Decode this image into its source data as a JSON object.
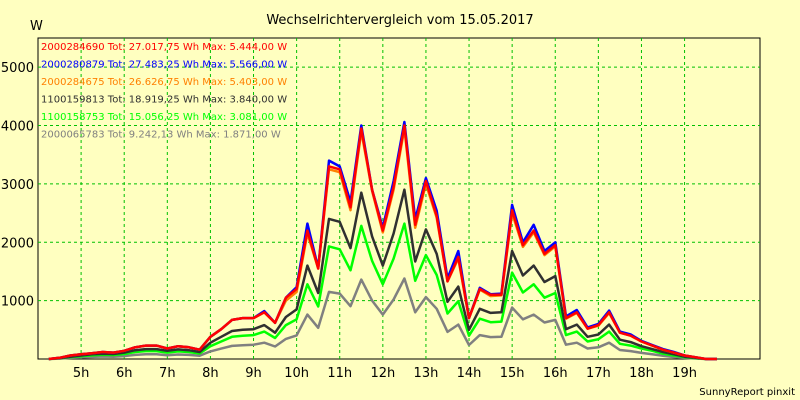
{
  "chart_data": {
    "type": "line",
    "title": "Wechselrichtervergleich vom 15.05.2017",
    "ylabel": "W",
    "xlabel": "",
    "footer": "SunnyReport pinxit",
    "grid": true,
    "legend_position": "top-left",
    "xlim": [
      4.0,
      20.75
    ],
    "ylim": [
      0,
      5500
    ],
    "x_ticks": [
      {
        "value": 5,
        "label": "5h"
      },
      {
        "value": 6,
        "label": "6h"
      },
      {
        "value": 7,
        "label": "7h"
      },
      {
        "value": 8,
        "label": "8h"
      },
      {
        "value": 9,
        "label": "9h"
      },
      {
        "value": 10,
        "label": "10h"
      },
      {
        "value": 11,
        "label": "11h"
      },
      {
        "value": 12,
        "label": "12h"
      },
      {
        "value": 13,
        "label": "13h"
      },
      {
        "value": 14,
        "label": "14h"
      },
      {
        "value": 15,
        "label": "15h"
      },
      {
        "value": 16,
        "label": "16h"
      },
      {
        "value": 17,
        "label": "17h"
      },
      {
        "value": 18,
        "label": "18h"
      },
      {
        "value": 19,
        "label": "19h"
      }
    ],
    "y_ticks": [
      {
        "value": 1000,
        "label": "1000"
      },
      {
        "value": 2000,
        "label": "2000"
      },
      {
        "value": 3000,
        "label": "3000"
      },
      {
        "value": 4000,
        "label": "4000"
      },
      {
        "value": 5000,
        "label": "5000"
      }
    ],
    "x": [
      4.25,
      4.5,
      4.75,
      5.0,
      5.25,
      5.5,
      5.75,
      6.0,
      6.25,
      6.5,
      6.75,
      7.0,
      7.25,
      7.5,
      7.75,
      8.0,
      8.25,
      8.5,
      8.75,
      9.0,
      9.25,
      9.5,
      9.75,
      10.0,
      10.25,
      10.5,
      10.75,
      11.0,
      11.25,
      11.5,
      11.75,
      12.0,
      12.25,
      12.5,
      12.75,
      13.0,
      13.25,
      13.5,
      13.75,
      14.0,
      14.25,
      14.5,
      14.75,
      15.0,
      15.25,
      15.5,
      15.75,
      16.0,
      16.25,
      16.5,
      16.75,
      17.0,
      17.25,
      17.5,
      17.75,
      18.0,
      18.25,
      18.5,
      18.75,
      19.0,
      19.25,
      19.5,
      19.75
    ],
    "series": [
      {
        "name": "2000284690",
        "legend": "2000284690 Tot: 27.017,75 Wh Max: 5.444,00 W",
        "color": "#ff0000",
        "values": [
          0,
          20,
          60,
          80,
          100,
          120,
          110,
          140,
          200,
          230,
          230,
          180,
          220,
          200,
          160,
          380,
          510,
          670,
          700,
          700,
          800,
          620,
          1050,
          1200,
          2200,
          1550,
          3300,
          3250,
          2600,
          3950,
          2900,
          2200,
          2950,
          4000,
          2300,
          3050,
          2450,
          1330,
          1750,
          700,
          1200,
          1100,
          1100,
          2550,
          1950,
          2200,
          1800,
          1950,
          700,
          800,
          520,
          580,
          800,
          450,
          400,
          300,
          230,
          160,
          110,
          60,
          30,
          0,
          0
        ]
      },
      {
        "name": "2000280879",
        "legend": "2000280879 Tot: 27.483,25 Wh Max: 5.566,00 W",
        "color": "#0000ff",
        "values": [
          0,
          20,
          60,
          80,
          100,
          120,
          110,
          140,
          200,
          230,
          230,
          180,
          220,
          200,
          160,
          380,
          510,
          670,
          700,
          700,
          820,
          620,
          1050,
          1230,
          2320,
          1560,
          3400,
          3300,
          2690,
          4000,
          2900,
          2250,
          3050,
          4060,
          2390,
          3100,
          2540,
          1380,
          1850,
          700,
          1220,
          1110,
          1120,
          2640,
          2000,
          2300,
          1850,
          2000,
          730,
          840,
          540,
          600,
          830,
          470,
          420,
          310,
          240,
          170,
          120,
          60,
          30,
          0,
          0
        ]
      },
      {
        "name": "2000284675",
        "legend": "2000284675 Tot: 26.626,75 Wh Max: 5.403,00 W",
        "color": "#ff8000",
        "values": [
          0,
          20,
          60,
          80,
          100,
          120,
          110,
          140,
          200,
          230,
          230,
          180,
          220,
          200,
          160,
          380,
          510,
          670,
          700,
          700,
          800,
          620,
          1000,
          1150,
          2150,
          1550,
          3250,
          3200,
          2550,
          3900,
          2880,
          2170,
          2900,
          3950,
          2250,
          3000,
          2420,
          1330,
          1720,
          700,
          1190,
          1080,
          1090,
          2500,
          1920,
          2170,
          1780,
          1930,
          690,
          790,
          520,
          570,
          790,
          450,
          400,
          300,
          230,
          160,
          110,
          60,
          30,
          0,
          0
        ]
      },
      {
        "name": "1100159813",
        "legend": "1100159813 Tot: 18.919,25 Wh Max: 3.840,00 W",
        "color": "#303030",
        "values": [
          0,
          15,
          40,
          60,
          80,
          90,
          85,
          110,
          150,
          170,
          170,
          140,
          165,
          150,
          120,
          280,
          380,
          480,
          500,
          510,
          580,
          450,
          720,
          850,
          1600,
          1130,
          2400,
          2350,
          1900,
          2850,
          2100,
          1600,
          2150,
          2900,
          1670,
          2220,
          1800,
          980,
          1240,
          500,
          860,
          790,
          800,
          1850,
          1430,
          1600,
          1320,
          1420,
          510,
          590,
          380,
          420,
          590,
          330,
          290,
          220,
          170,
          120,
          80,
          40,
          20,
          0,
          0
        ]
      },
      {
        "name": "1100158753",
        "legend": "1100158753 Tot: 15.056,25 Wh Max: 3.081,00 W",
        "color": "#00ff00",
        "values": [
          0,
          12,
          32,
          48,
          62,
          72,
          68,
          85,
          120,
          135,
          135,
          110,
          130,
          120,
          95,
          220,
          300,
          380,
          400,
          410,
          470,
          360,
          580,
          680,
          1280,
          900,
          1930,
          1880,
          1520,
          2280,
          1680,
          1280,
          1720,
          2320,
          1340,
          1780,
          1440,
          780,
          990,
          400,
          690,
          630,
          640,
          1480,
          1140,
          1280,
          1050,
          1130,
          410,
          470,
          300,
          340,
          470,
          260,
          230,
          180,
          140,
          90,
          60,
          30,
          15,
          0,
          0
        ]
      },
      {
        "name": "2000065783",
        "legend": "2000065783 Tot: 9.242,13 Wh Max: 1.871,00 W",
        "color": "#808080",
        "values": [
          0,
          7,
          19,
          28,
          36,
          42,
          40,
          50,
          70,
          80,
          80,
          65,
          77,
          70,
          56,
          130,
          178,
          225,
          237,
          245,
          280,
          215,
          345,
          405,
          760,
          535,
          1150,
          1120,
          905,
          1360,
          1000,
          760,
          1020,
          1380,
          800,
          1060,
          860,
          465,
          590,
          240,
          410,
          375,
          380,
          880,
          680,
          760,
          625,
          670,
          245,
          280,
          180,
          200,
          280,
          155,
          135,
          105,
          80,
          55,
          35,
          18,
          9,
          0,
          0
        ]
      }
    ]
  }
}
